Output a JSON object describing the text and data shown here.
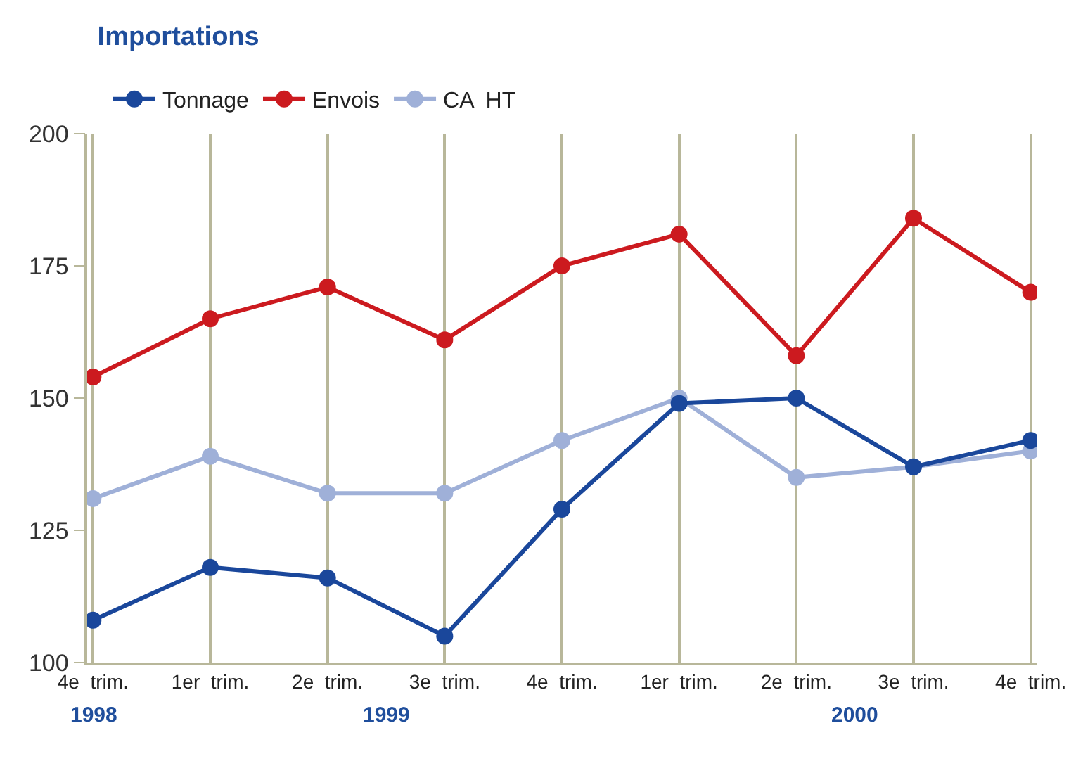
{
  "chart_data": {
    "type": "line",
    "title": "Importations",
    "categories": [
      "4e  trim.",
      "1er  trim.",
      "2e  trim.",
      "3e  trim.",
      "4e  trim.",
      "1er  trim.",
      "2e  trim.",
      "3e  trim.",
      "4e  trim."
    ],
    "series": [
      {
        "name": "Tonnage",
        "color": "#1a479b",
        "values": [
          108,
          118,
          116,
          105,
          129,
          149,
          150,
          137,
          142
        ]
      },
      {
        "name": "Envois",
        "color": "#cc1a1f",
        "values": [
          154,
          165,
          171,
          161,
          175,
          181,
          158,
          184,
          170
        ]
      },
      {
        "name": "CA  HT",
        "color": "#9fb0d8",
        "values": [
          131,
          139,
          132,
          132,
          142,
          150,
          135,
          137,
          140
        ]
      }
    ],
    "annotations": [
      "1998",
      "1999",
      "2000"
    ],
    "ylim": [
      100,
      200
    ],
    "yticks": [
      100,
      125,
      150,
      175,
      200
    ],
    "grid": "x",
    "legend": "top left",
    "marker": "circle",
    "line_style": "solid"
  }
}
